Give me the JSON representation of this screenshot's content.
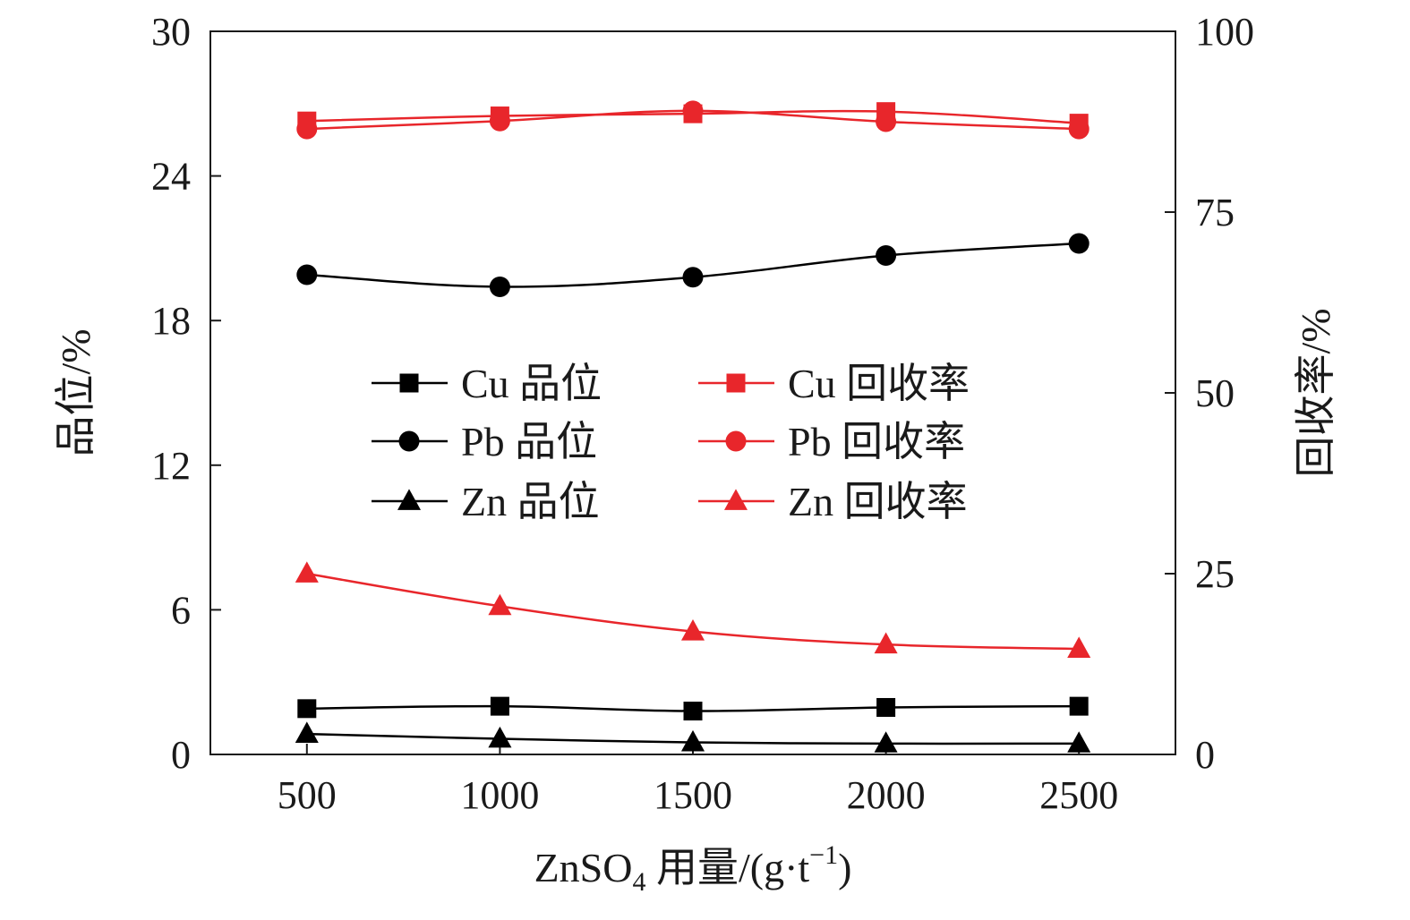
{
  "chart_data": {
    "type": "line",
    "x": [
      500,
      1000,
      1500,
      2000,
      2500
    ],
    "x_ticks": [
      "500",
      "1000",
      "1500",
      "2000",
      "2500"
    ],
    "xlim": [
      250,
      2750
    ],
    "xlabel": {
      "main": "ZnSO",
      "sub": "4",
      "rest": " 用量/(g·t",
      "sup": "−1",
      "close": ")"
    },
    "ylabel_left": "品位/%",
    "ylabel_right": "回收率/%",
    "ylim_left": [
      0,
      30
    ],
    "ylim_right": [
      0,
      100
    ],
    "yticks_left": [
      "0",
      "6",
      "12",
      "18",
      "24",
      "30"
    ],
    "yticks_right": [
      "0",
      "25",
      "50",
      "75",
      "100"
    ],
    "legend_position": "center-left",
    "series": [
      {
        "name": "Cu 品位",
        "axis": "left",
        "color": "#000000",
        "marker": "square",
        "values": [
          1.9,
          2.0,
          1.8,
          1.95,
          2.0
        ]
      },
      {
        "name": "Pb 品位",
        "axis": "left",
        "color": "#000000",
        "marker": "circle",
        "values": [
          19.9,
          19.4,
          19.8,
          20.7,
          21.2
        ]
      },
      {
        "name": "Zn 品位",
        "axis": "left",
        "color": "#000000",
        "marker": "triangle",
        "values": [
          0.85,
          0.65,
          0.5,
          0.45,
          0.45
        ]
      },
      {
        "name": "Cu 回收率",
        "axis": "right",
        "color": "#e8262b",
        "marker": "square",
        "values": [
          87.6,
          88.3,
          88.6,
          88.9,
          87.3
        ]
      },
      {
        "name": "Pb 回收率",
        "axis": "right",
        "color": "#e8262b",
        "marker": "circle",
        "values": [
          86.5,
          87.6,
          89.0,
          87.5,
          86.5
        ]
      },
      {
        "name": "Zn 回收率",
        "axis": "right",
        "color": "#e8262b",
        "marker": "triangle",
        "values": [
          25.0,
          20.5,
          17.0,
          15.2,
          14.6
        ]
      }
    ]
  }
}
